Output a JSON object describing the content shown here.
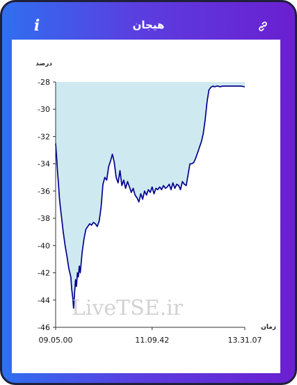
{
  "header": {
    "title": "هیجان",
    "info_label": "i"
  },
  "chart_data": {
    "type": "area",
    "ylabel": "درصد",
    "xlabel": "زمان",
    "ylim": [
      -46,
      -28
    ],
    "yticks": [
      -28,
      -30,
      -32,
      -34,
      -36,
      -38,
      -40,
      -42,
      -44,
      -46
    ],
    "xtick_labels": [
      "09.05.00",
      "11.09.42",
      "13.31.07"
    ],
    "xlim": [
      0,
      100
    ],
    "xticks": [
      0,
      51,
      100
    ],
    "watermark": "LiveTSE.ir",
    "fill_color": "#cfe9f1",
    "line_color": "#00008b",
    "series": [
      {
        "x": [
          0,
          0.5,
          1,
          1.5,
          2,
          2.5,
          3,
          4,
          5,
          6,
          7,
          8,
          8.5,
          9,
          9.5,
          10,
          10.5,
          11,
          11.5,
          12,
          12.5,
          13,
          14,
          15,
          16,
          17,
          18,
          19,
          20,
          21,
          22,
          23,
          24,
          25,
          26,
          27,
          28,
          29,
          30,
          31,
          32,
          33,
          34,
          35,
          36,
          37,
          38,
          39,
          40,
          41,
          42,
          43,
          44,
          45,
          46,
          47,
          48,
          49,
          50,
          51,
          52,
          53,
          54,
          55,
          56,
          57,
          58,
          59,
          60,
          61,
          62,
          63,
          64,
          65,
          66,
          67,
          68,
          69,
          70,
          71,
          72,
          73,
          74,
          75,
          76,
          77,
          78,
          79,
          80,
          81,
          82,
          83,
          84,
          85,
          86,
          87,
          88,
          90,
          92,
          94,
          96,
          98,
          100
        ],
        "y": [
          -32.5,
          -33.5,
          -34.6,
          -35.5,
          -36.5,
          -37.2,
          -37.8,
          -39,
          -40,
          -40.8,
          -41.7,
          -42.3,
          -43.2,
          -43.8,
          -44.6,
          -43.5,
          -42.5,
          -43,
          -42,
          -42.3,
          -41.5,
          -42,
          -40.5,
          -39.5,
          -38.8,
          -38.6,
          -38.4,
          -38.5,
          -38.3,
          -38.4,
          -38.6,
          -38.2,
          -37.2,
          -35.5,
          -35,
          -35.2,
          -34.2,
          -33.8,
          -33.3,
          -33.9,
          -35,
          -35.4,
          -34.5,
          -35.6,
          -35.2,
          -35.8,
          -35.3,
          -35.7,
          -36.1,
          -35.8,
          -36.3,
          -36.5,
          -36.8,
          -36.2,
          -36.6,
          -36,
          -36.3,
          -35.9,
          -36.1,
          -35.7,
          -36.2,
          -35.8,
          -35.9,
          -35.7,
          -35.9,
          -35.6,
          -35.8,
          -35.7,
          -35.5,
          -35.9,
          -35.4,
          -35.8,
          -35.5,
          -35.6,
          -35.9,
          -35.3,
          -35.5,
          -35.6,
          -34.8,
          -34,
          -34,
          -33.9,
          -33.6,
          -33.2,
          -32.8,
          -32.4,
          -31.8,
          -30.8,
          -29.5,
          -28.6,
          -28.4,
          -28.3,
          -28.35,
          -28.3,
          -28.3,
          -28.35,
          -28.3,
          -28.3,
          -28.3,
          -28.3,
          -28.3,
          -28.3,
          -28.35
        ]
      }
    ]
  }
}
